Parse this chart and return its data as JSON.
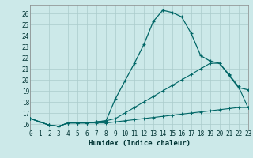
{
  "xlabel": "Humidex (Indice chaleur)",
  "bg_color": "#cce9e9",
  "grid_color": "#aacccc",
  "line_color": "#006666",
  "xmin": 0,
  "xmax": 23,
  "ymin": 15.5,
  "ymax": 26.8,
  "yticks": [
    16,
    17,
    18,
    19,
    20,
    21,
    22,
    23,
    24,
    25,
    26
  ],
  "xticks": [
    0,
    1,
    2,
    3,
    4,
    5,
    6,
    7,
    8,
    9,
    10,
    11,
    12,
    13,
    14,
    15,
    16,
    17,
    18,
    19,
    20,
    21,
    22,
    23
  ],
  "l1_y": [
    16.5,
    16.2,
    15.9,
    15.8,
    16.1,
    16.1,
    16.1,
    16.2,
    16.3,
    18.3,
    19.9,
    21.5,
    23.2,
    25.3,
    26.3,
    26.1,
    25.7,
    24.2,
    22.2,
    21.7,
    21.5,
    20.4,
    19.3,
    19.1
  ],
  "l2_y": [
    16.5,
    16.2,
    15.9,
    15.8,
    16.1,
    16.1,
    16.1,
    16.2,
    16.3,
    16.5,
    17.0,
    17.5,
    18.0,
    18.5,
    19.0,
    19.5,
    20.0,
    20.5,
    21.0,
    21.5,
    21.5,
    20.5,
    19.4,
    17.5
  ],
  "l3_y": [
    16.5,
    16.2,
    15.9,
    15.8,
    16.1,
    16.1,
    16.1,
    16.1,
    16.1,
    16.2,
    16.3,
    16.4,
    16.5,
    16.6,
    16.7,
    16.8,
    16.9,
    17.0,
    17.1,
    17.2,
    17.3,
    17.4,
    17.5,
    17.5
  ]
}
